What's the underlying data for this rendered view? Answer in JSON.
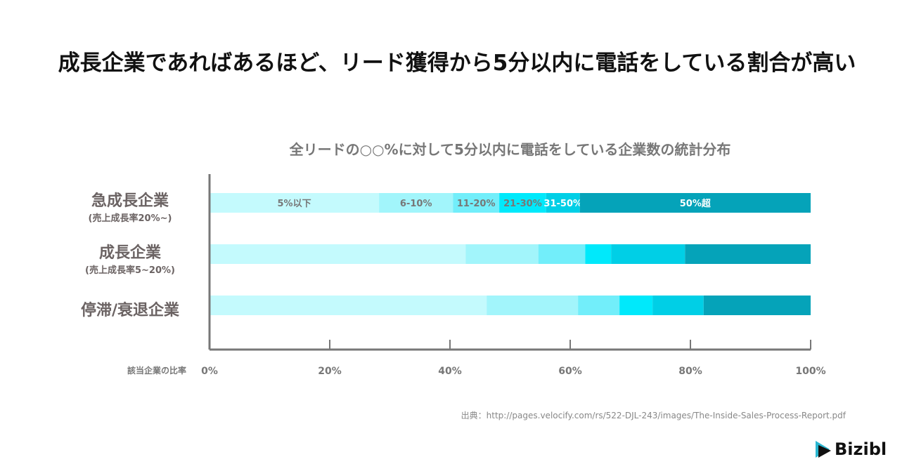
{
  "header": {
    "title": "成長企業であればあるほど、リード獲得から5分以内に電話をしている割合が高い"
  },
  "chart_data": {
    "type": "bar",
    "orientation": "horizontal",
    "stacked": true,
    "title": "全リードの○○%に対して5分以内に電話をしている企業数の統計分布",
    "xlabel": "該当企業の比率",
    "xlim": [
      0,
      100
    ],
    "xticks": [
      "0%",
      "20%",
      "40%",
      "60%",
      "80%",
      "100%"
    ],
    "categories": [
      {
        "name": "急成長企業",
        "sub": "(売上成長率20%~)"
      },
      {
        "name": "成長企業",
        "sub": "(売上成長率5~20%)"
      },
      {
        "name": "停滞/衰退企業",
        "sub": ""
      }
    ],
    "series": [
      {
        "name": "5%以下",
        "color": "#c4fafd",
        "values": [
          28.2,
          42.6,
          46.1
        ]
      },
      {
        "name": "6-10%",
        "color": "#a2f5fb",
        "values": [
          12.3,
          12.1,
          15.2
        ]
      },
      {
        "name": "11-20%",
        "color": "#72eefa",
        "values": [
          7.7,
          7.8,
          6.9
        ]
      },
      {
        "name": "21-30%",
        "color": "#00e9fb",
        "values": [
          7.8,
          4.3,
          5.5
        ]
      },
      {
        "name": "31-50%",
        "color": "#00cfe6",
        "values": [
          5.6,
          12.3,
          8.5
        ]
      },
      {
        "name": "50%超",
        "color": "#05a3b9",
        "values": [
          38.4,
          20.9,
          17.8
        ]
      }
    ]
  },
  "source": "出典：http://pages.velocify.com/rs/522-DJL-243/images/The-Inside-Sales-Process-Report.pdf",
  "logo": "Bizibl"
}
